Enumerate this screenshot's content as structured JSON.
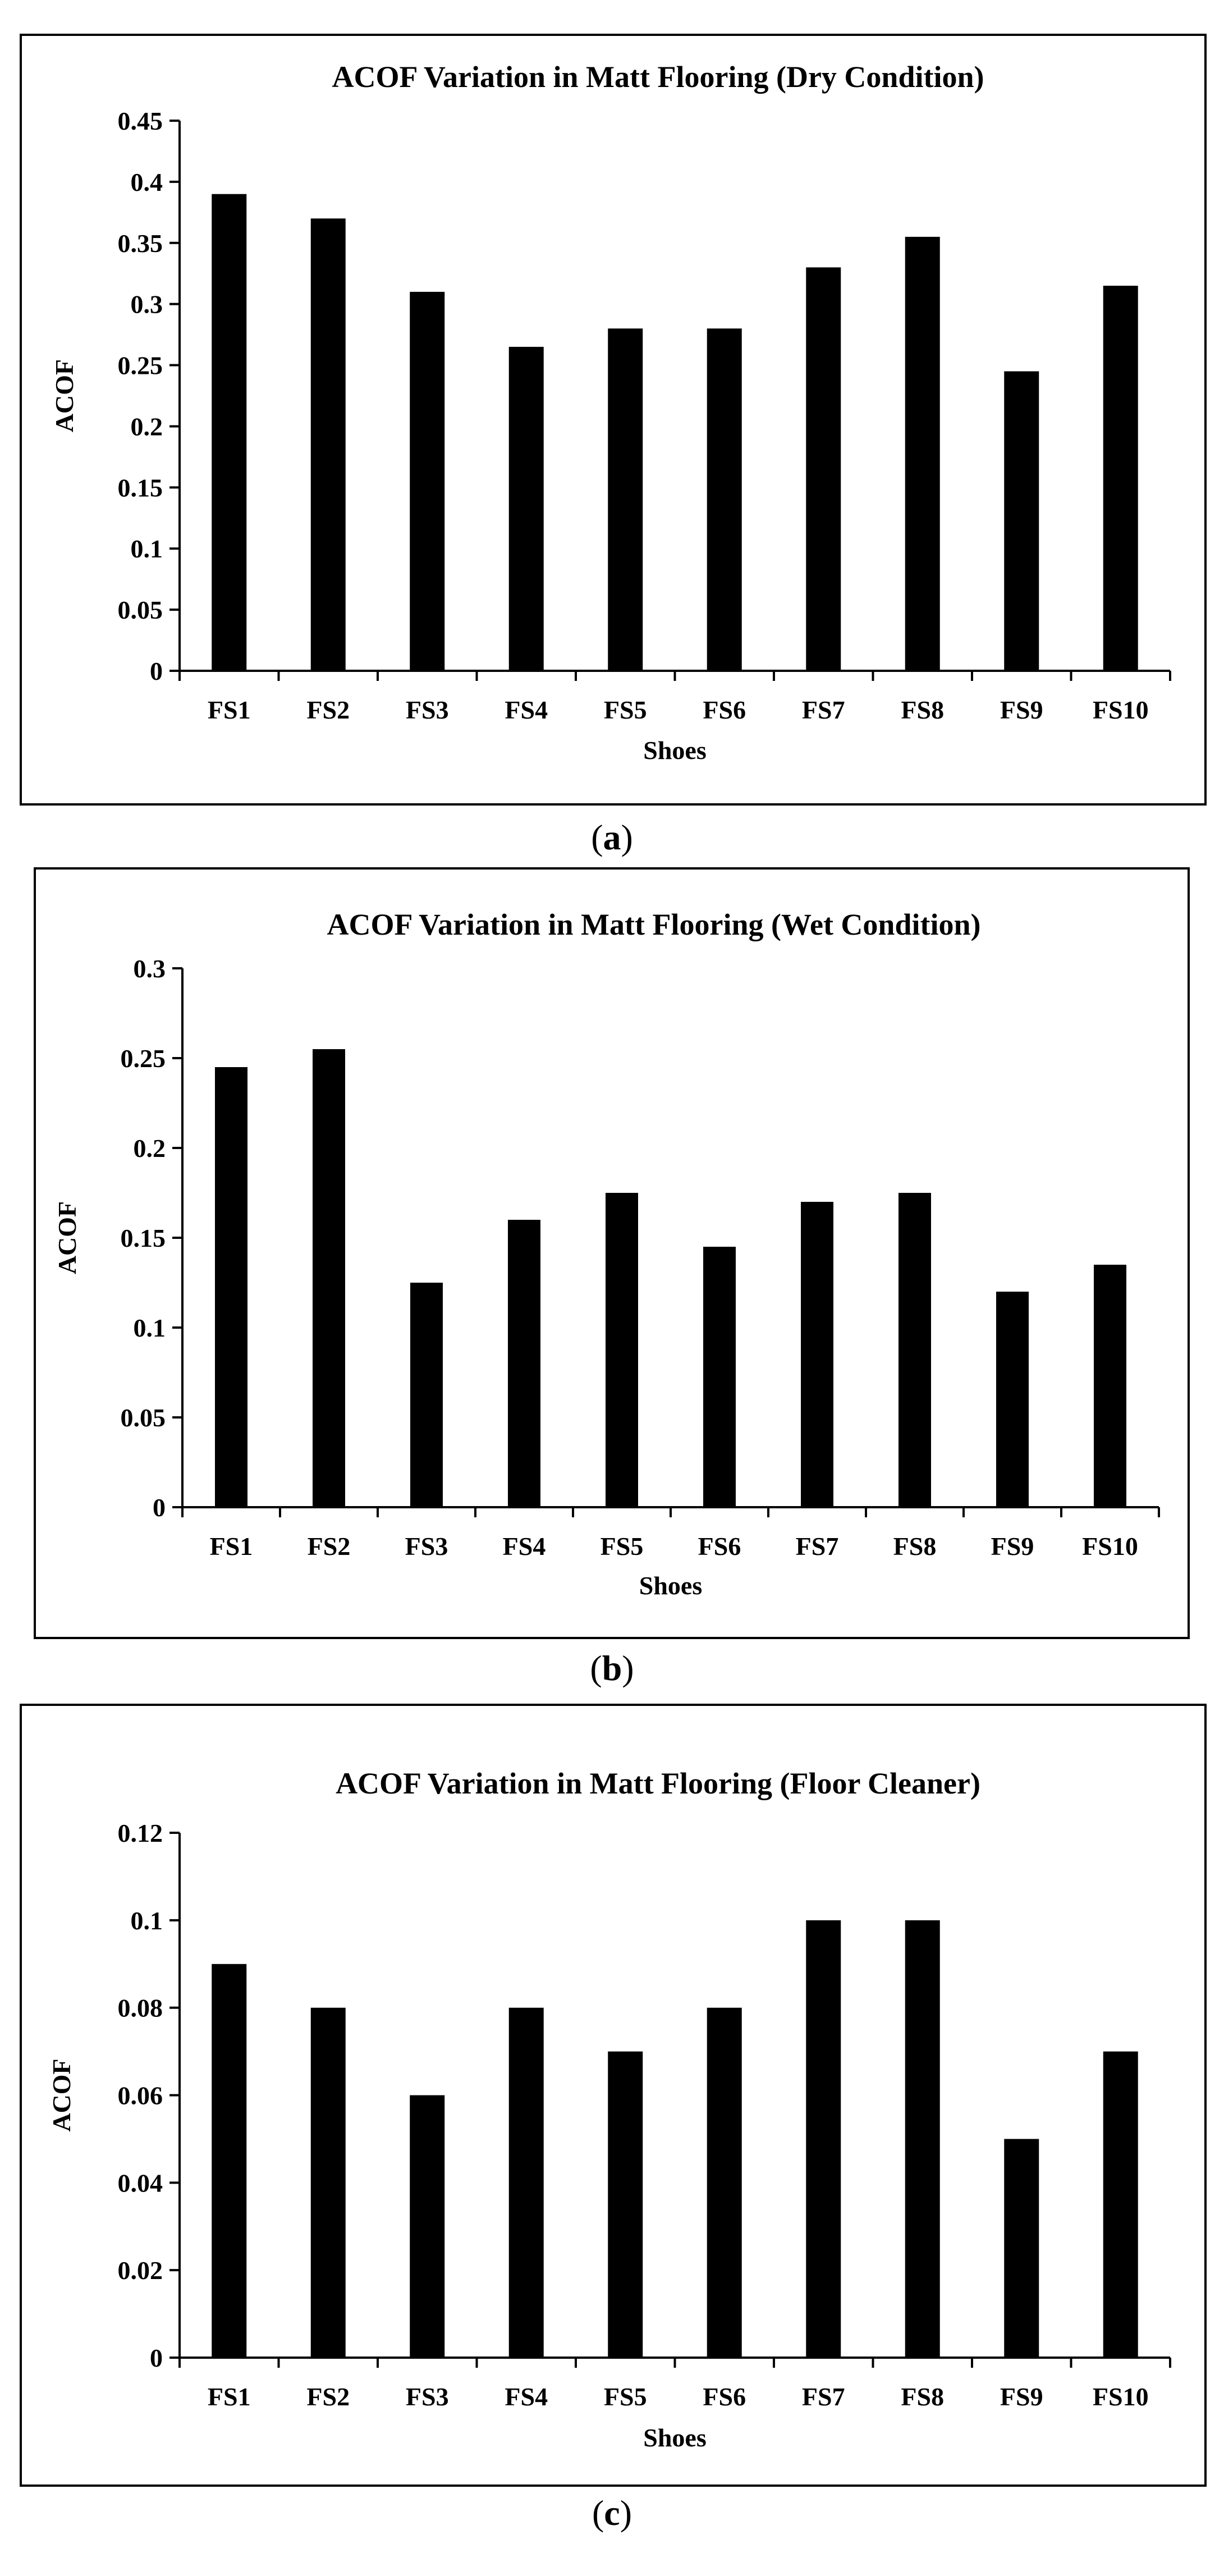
{
  "chart_data": [
    {
      "type": "bar",
      "panel": "a",
      "title": "ACOF Variation in Matt Flooring (Dry Condition)",
      "xlabel": "Shoes",
      "ylabel": "ACOF",
      "ylim": [
        0,
        0.45
      ],
      "yticks": [
        "0",
        "0.05",
        "0.1",
        "0.15",
        "0.2",
        "0.25",
        "0.3",
        "0.35",
        "0.4",
        "0.45"
      ],
      "categories": [
        "FS1",
        "FS2",
        "FS3",
        "FS4",
        "FS5",
        "FS6",
        "FS7",
        "FS8",
        "FS9",
        "FS10"
      ],
      "values": [
        0.39,
        0.37,
        0.31,
        0.265,
        0.28,
        0.28,
        0.33,
        0.355,
        0.245,
        0.315
      ],
      "grid": false,
      "legend": "none"
    },
    {
      "type": "bar",
      "panel": "b",
      "title": "ACOF Variation in Matt Flooring (Wet Condition)",
      "xlabel": "Shoes",
      "ylabel": "ACOF",
      "ylim": [
        0,
        0.3
      ],
      "yticks": [
        "0",
        "0.05",
        "0.1",
        "0.15",
        "0.2",
        "0.25",
        "0.3"
      ],
      "categories": [
        "FS1",
        "FS2",
        "FS3",
        "FS4",
        "FS5",
        "FS6",
        "FS7",
        "FS8",
        "FS9",
        "FS10"
      ],
      "values": [
        0.245,
        0.255,
        0.125,
        0.16,
        0.175,
        0.145,
        0.17,
        0.175,
        0.12,
        0.135
      ],
      "grid": false,
      "legend": "none"
    },
    {
      "type": "bar",
      "panel": "c",
      "title": "ACOF Variation in Matt Flooring (Floor Cleaner)",
      "xlabel": "Shoes",
      "ylabel": "ACOF",
      "ylim": [
        0,
        0.12
      ],
      "yticks": [
        "0",
        "0.02",
        "0.04",
        "0.06",
        "0.08",
        "0.1",
        "0.12"
      ],
      "categories": [
        "FS1",
        "FS2",
        "FS3",
        "FS4",
        "FS5",
        "FS6",
        "FS7",
        "FS8",
        "FS9",
        "FS10"
      ],
      "values": [
        0.09,
        0.08,
        0.06,
        0.08,
        0.07,
        0.08,
        0.1,
        0.1,
        0.05,
        0.07
      ],
      "grid": false,
      "legend": "none"
    }
  ],
  "sublabels": {
    "a": {
      "open": "(",
      "letter": "a",
      "close": ")"
    },
    "b": {
      "open": "(",
      "letter": "b",
      "close": ")"
    },
    "c": {
      "open": "(",
      "letter": "c",
      "close": ")"
    }
  },
  "colors": {
    "bar": "#000000",
    "axis": "#000000",
    "background": "#ffffff"
  }
}
